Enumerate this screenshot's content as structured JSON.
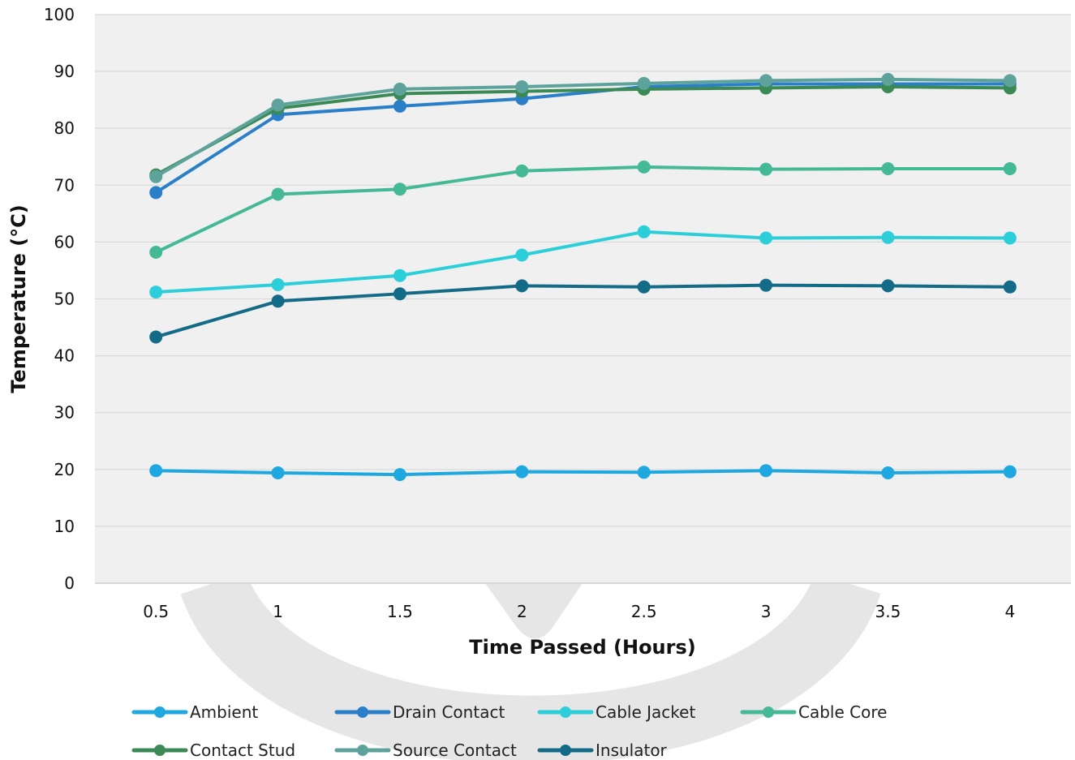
{
  "colors": {
    "plot_bg": "#f0f0f0",
    "grid": "#d9d9d9",
    "watermark": "#e6e6e6"
  },
  "chart_data": {
    "type": "line",
    "title": "",
    "xlabel": "Time Passed (Hours)",
    "ylabel": "Temperature (°C)",
    "x": [
      "0.5",
      "1",
      "1.5",
      "2",
      "2.5",
      "3",
      "3.5",
      "4"
    ],
    "ylim": [
      0,
      100
    ],
    "yticks": [
      "0",
      "10",
      "20",
      "30",
      "40",
      "50",
      "60",
      "70",
      "80",
      "90",
      "100"
    ],
    "grid": true,
    "legend_position": "bottom",
    "series": [
      {
        "name": "Ambient",
        "color": "#1fa8e0",
        "values": [
          19.8,
          19.4,
          19.1,
          19.6,
          19.5,
          19.8,
          19.4,
          19.6
        ]
      },
      {
        "name": "Drain Contact",
        "color": "#2b7fc9",
        "values": [
          68.7,
          82.4,
          83.9,
          85.2,
          87.3,
          87.8,
          87.8,
          87.8
        ]
      },
      {
        "name": "Cable Jacket",
        "color": "#2ccfd9",
        "values": [
          51.2,
          52.5,
          54.1,
          57.7,
          61.8,
          60.7,
          60.8,
          60.7
        ]
      },
      {
        "name": "Cable Core",
        "color": "#45b996",
        "values": [
          58.2,
          68.4,
          69.3,
          72.5,
          73.2,
          72.8,
          72.9,
          72.9
        ]
      },
      {
        "name": "Contact Stud",
        "color": "#3b8a55",
        "values": [
          71.8,
          83.5,
          86.1,
          86.5,
          86.9,
          87.1,
          87.3,
          87.1
        ]
      },
      {
        "name": "Source Contact",
        "color": "#5ea39b",
        "values": [
          71.5,
          84.1,
          86.9,
          87.3,
          87.9,
          88.4,
          88.6,
          88.4
        ]
      },
      {
        "name": "Insulator",
        "color": "#146b88",
        "values": [
          43.3,
          49.6,
          50.9,
          52.3,
          52.1,
          52.4,
          52.3,
          52.1
        ]
      }
    ]
  }
}
